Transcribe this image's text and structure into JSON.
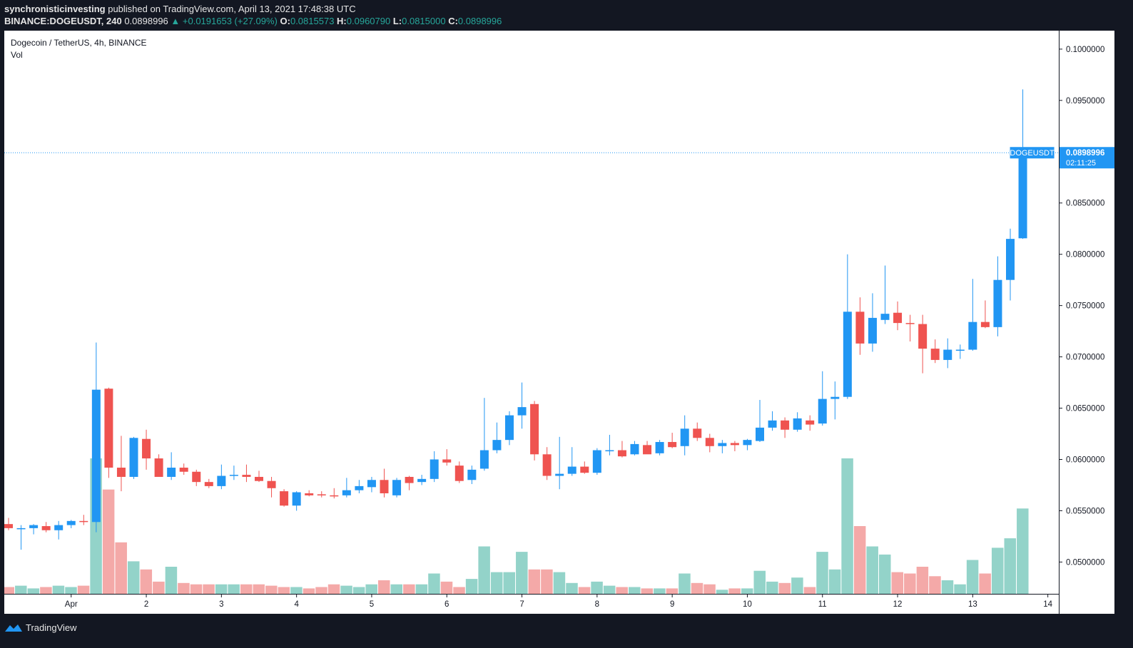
{
  "header": {
    "author": "synchronisticinvesting",
    "published_text": "published on TradingView.com, April 13, 2021 17:48:38 UTC",
    "symbol_line": "BINANCE:DOGEUSDT, 240",
    "last": "0.0898996",
    "change": "▲ +0.0191653 (+27.09%)",
    "o_label": "O:",
    "o": "0.0815573",
    "h_label": "H:",
    "h": "0.0960790",
    "l_label": "L:",
    "l": "0.0815000",
    "c_label": "C:",
    "c": "0.0898996"
  },
  "footer": {
    "brand": "TradingView"
  },
  "colors": {
    "up": "#2196f3",
    "down": "#ef5350",
    "vol_up": "#93d3c9",
    "vol_down": "#f4a9a8",
    "line": "#2196f3"
  },
  "chart_data": {
    "type": "candlestick",
    "title": "Dogecoin / TetherUS, 4h, BINANCE",
    "volume_label": "Vol",
    "y_ticks": [
      0.05,
      0.055,
      0.06,
      0.065,
      0.07,
      0.075,
      0.08,
      0.085,
      0.09,
      0.095,
      0.1
    ],
    "y_tick_labels": [
      "0.0500000",
      "0.0550000",
      "0.0600000",
      "0.0650000",
      "0.0700000",
      "0.0750000",
      "0.0800000",
      "0.0850000",
      "0.0900000",
      "0.0950000",
      "0.1000000"
    ],
    "ylim": [
      0.0469,
      0.1018
    ],
    "x_tick_labels": [
      {
        "label": "Apr",
        "index": 5
      },
      {
        "label": "2",
        "index": 11
      },
      {
        "label": "3",
        "index": 17
      },
      {
        "label": "4",
        "index": 23
      },
      {
        "label": "5",
        "index": 29
      },
      {
        "label": "6",
        "index": 35
      },
      {
        "label": "7",
        "index": 41
      },
      {
        "label": "8",
        "index": 47
      },
      {
        "label": "9",
        "index": 53
      },
      {
        "label": "10",
        "index": 59
      },
      {
        "label": "11",
        "index": 65
      },
      {
        "label": "12",
        "index": 71
      },
      {
        "label": "13",
        "index": 77
      },
      {
        "label": "14",
        "index": 83
      }
    ],
    "last_price": 0.0898996,
    "last_price_label": "0.0898996",
    "symbol_badge": "DOGEUSDT",
    "countdown": "02:11:25",
    "ohlc": [
      [
        0.0537,
        0.0543,
        0.0531,
        0.0533
      ],
      [
        0.0533,
        0.0536,
        0.0512,
        0.0533
      ],
      [
        0.0533,
        0.0537,
        0.0527,
        0.0536
      ],
      [
        0.0535,
        0.0539,
        0.0529,
        0.0531
      ],
      [
        0.0531,
        0.054,
        0.0522,
        0.0536
      ],
      [
        0.0536,
        0.0541,
        0.0533,
        0.054
      ],
      [
        0.054,
        0.0546,
        0.0536,
        0.0539
      ],
      [
        0.0539,
        0.0714,
        0.0529,
        0.0668
      ],
      [
        0.0669,
        0.067,
        0.0582,
        0.0592
      ],
      [
        0.0592,
        0.0623,
        0.0569,
        0.0583
      ],
      [
        0.0583,
        0.0622,
        0.0581,
        0.0621
      ],
      [
        0.062,
        0.0629,
        0.059,
        0.0601
      ],
      [
        0.0601,
        0.0605,
        0.0584,
        0.0583
      ],
      [
        0.0583,
        0.0607,
        0.058,
        0.0592
      ],
      [
        0.0592,
        0.0596,
        0.0585,
        0.0588
      ],
      [
        0.0588,
        0.059,
        0.0574,
        0.0578
      ],
      [
        0.0578,
        0.0581,
        0.0572,
        0.0574
      ],
      [
        0.0574,
        0.0595,
        0.0571,
        0.0584
      ],
      [
        0.0584,
        0.0594,
        0.058,
        0.0585
      ],
      [
        0.0585,
        0.0595,
        0.0578,
        0.0583
      ],
      [
        0.0583,
        0.0589,
        0.0578,
        0.0579
      ],
      [
        0.0579,
        0.0583,
        0.0563,
        0.0572
      ],
      [
        0.0569,
        0.0571,
        0.0554,
        0.0555
      ],
      [
        0.0555,
        0.0569,
        0.055,
        0.0568
      ],
      [
        0.0567,
        0.057,
        0.0564,
        0.0565
      ],
      [
        0.0566,
        0.0569,
        0.0563,
        0.0565
      ],
      [
        0.0565,
        0.0572,
        0.0562,
        0.0564
      ],
      [
        0.0565,
        0.0582,
        0.0563,
        0.057
      ],
      [
        0.057,
        0.058,
        0.0567,
        0.0574
      ],
      [
        0.0573,
        0.0583,
        0.0568,
        0.058
      ],
      [
        0.058,
        0.0591,
        0.0563,
        0.0567
      ],
      [
        0.0565,
        0.0582,
        0.0563,
        0.058
      ],
      [
        0.0583,
        0.0584,
        0.057,
        0.0577
      ],
      [
        0.0578,
        0.0585,
        0.0575,
        0.0581
      ],
      [
        0.0581,
        0.0608,
        0.0578,
        0.06
      ],
      [
        0.06,
        0.061,
        0.0594,
        0.0597
      ],
      [
        0.0594,
        0.0598,
        0.0577,
        0.0579
      ],
      [
        0.058,
        0.0594,
        0.0576,
        0.059
      ],
      [
        0.0591,
        0.066,
        0.0589,
        0.0609
      ],
      [
        0.0609,
        0.0636,
        0.0606,
        0.0619
      ],
      [
        0.0619,
        0.0647,
        0.0614,
        0.0643
      ],
      [
        0.0643,
        0.0675,
        0.063,
        0.0651
      ],
      [
        0.0654,
        0.0657,
        0.0599,
        0.0605
      ],
      [
        0.0605,
        0.0612,
        0.058,
        0.0584
      ],
      [
        0.0584,
        0.0622,
        0.0571,
        0.0586
      ],
      [
        0.0586,
        0.0612,
        0.0584,
        0.0593
      ],
      [
        0.0593,
        0.0598,
        0.0586,
        0.0587
      ],
      [
        0.0587,
        0.0611,
        0.0585,
        0.0609
      ],
      [
        0.0609,
        0.0624,
        0.0604,
        0.0609
      ],
      [
        0.0609,
        0.0618,
        0.0602,
        0.0603
      ],
      [
        0.0605,
        0.0618,
        0.0604,
        0.0615
      ],
      [
        0.0614,
        0.0618,
        0.0608,
        0.0605
      ],
      [
        0.0606,
        0.0619,
        0.0604,
        0.0617
      ],
      [
        0.0617,
        0.0626,
        0.0611,
        0.0612
      ],
      [
        0.0613,
        0.0643,
        0.0604,
        0.063
      ],
      [
        0.063,
        0.0636,
        0.0618,
        0.0621
      ],
      [
        0.0621,
        0.0625,
        0.0607,
        0.0613
      ],
      [
        0.0613,
        0.0619,
        0.0606,
        0.0616
      ],
      [
        0.0616,
        0.0618,
        0.0608,
        0.0614
      ],
      [
        0.0614,
        0.062,
        0.0609,
        0.0619
      ],
      [
        0.0618,
        0.0658,
        0.0617,
        0.0631
      ],
      [
        0.0631,
        0.0647,
        0.0628,
        0.0638
      ],
      [
        0.0638,
        0.0641,
        0.0621,
        0.0629
      ],
      [
        0.0629,
        0.0646,
        0.0627,
        0.064
      ],
      [
        0.0638,
        0.0643,
        0.0628,
        0.0634
      ],
      [
        0.0635,
        0.0686,
        0.0633,
        0.0659
      ],
      [
        0.0659,
        0.0676,
        0.0639,
        0.0661
      ],
      [
        0.0661,
        0.08,
        0.0659,
        0.0744
      ],
      [
        0.0744,
        0.0758,
        0.0702,
        0.0713
      ],
      [
        0.0713,
        0.0762,
        0.0705,
        0.0738
      ],
      [
        0.0736,
        0.0789,
        0.0732,
        0.0742
      ],
      [
        0.0743,
        0.0754,
        0.0726,
        0.0733
      ],
      [
        0.0733,
        0.0741,
        0.0715,
        0.0732
      ],
      [
        0.0732,
        0.0741,
        0.0684,
        0.0708
      ],
      [
        0.0708,
        0.0717,
        0.0694,
        0.0697
      ],
      [
        0.0697,
        0.0718,
        0.0689,
        0.0707
      ],
      [
        0.0707,
        0.0712,
        0.0698,
        0.0707
      ],
      [
        0.0707,
        0.0776,
        0.0706,
        0.0734
      ],
      [
        0.0734,
        0.0755,
        0.0728,
        0.0729
      ],
      [
        0.0729,
        0.0798,
        0.072,
        0.0775
      ],
      [
        0.0775,
        0.0825,
        0.0755,
        0.0815
      ],
      [
        0.0815573,
        0.096079,
        0.0815,
        0.0898996
      ]
    ],
    "volume": [
      5,
      6,
      4,
      5,
      6,
      5,
      6,
      100,
      77,
      38,
      24,
      18,
      9,
      20,
      8,
      7,
      7,
      7,
      7,
      7,
      7,
      6,
      5,
      5,
      4,
      5,
      7,
      6,
      5,
      7,
      10,
      7,
      7,
      7,
      15,
      9,
      5,
      11,
      35,
      16,
      16,
      31,
      18,
      18,
      16,
      8,
      5,
      9,
      6,
      5,
      5,
      4,
      4,
      4,
      15,
      8,
      7,
      3,
      4,
      4,
      17,
      9,
      8,
      12,
      5,
      31,
      18,
      100,
      50,
      35,
      29,
      16,
      15,
      20,
      13,
      10,
      7,
      25,
      15,
      34,
      41,
      63
    ]
  }
}
